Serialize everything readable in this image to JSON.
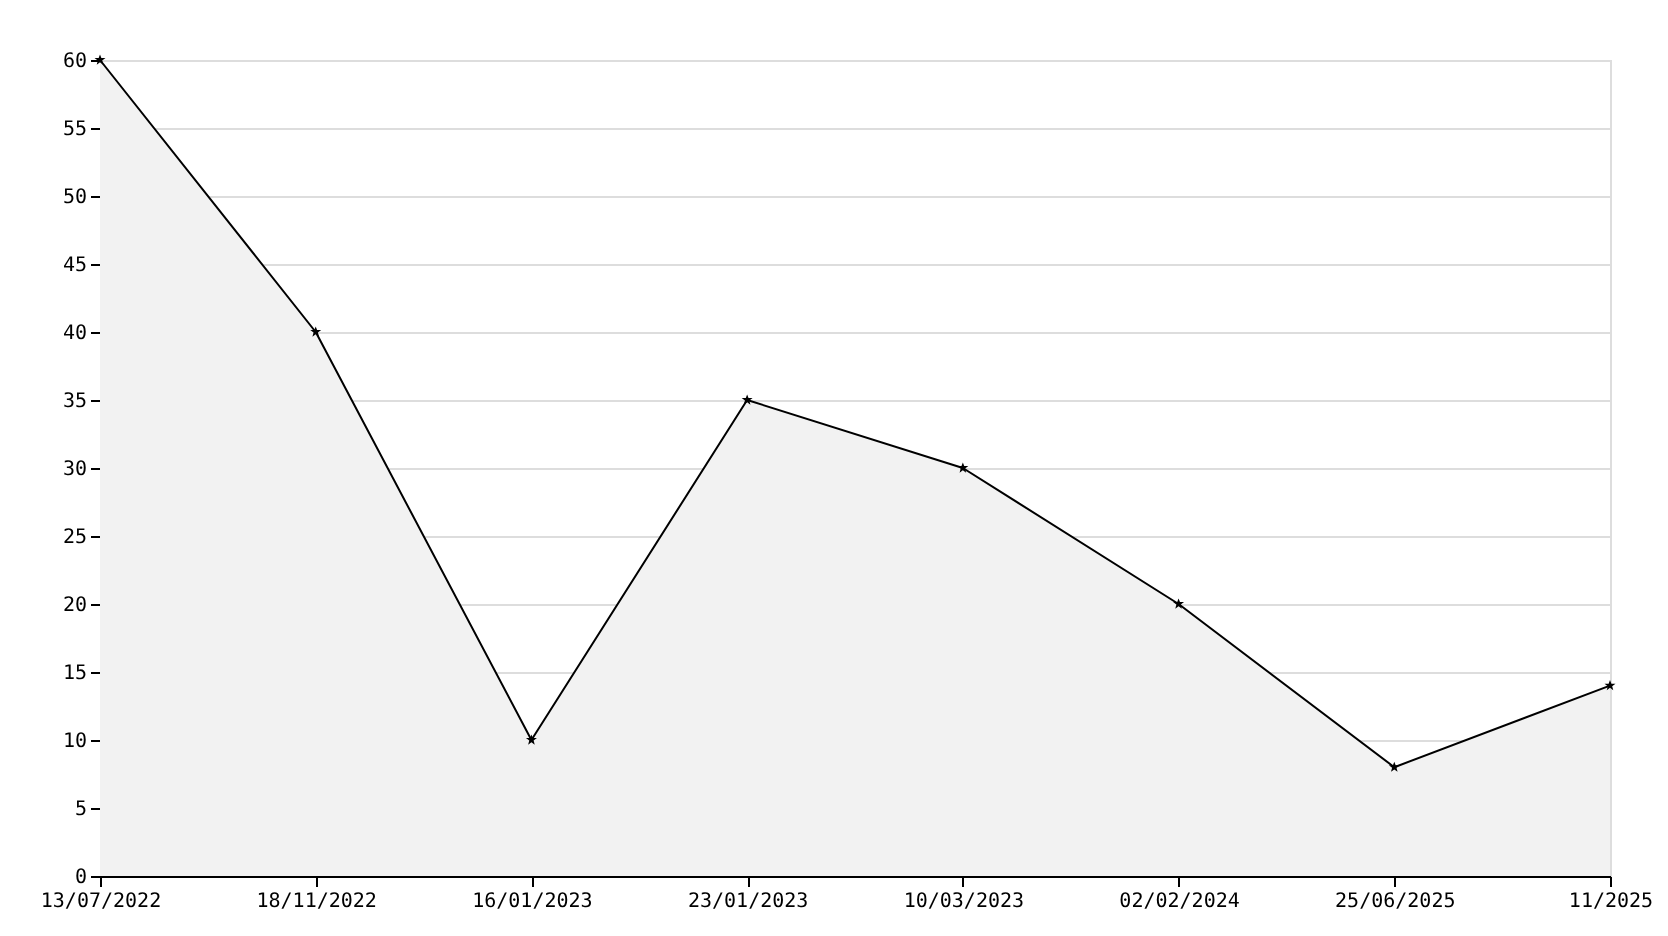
{
  "chart_data": {
    "type": "area",
    "categories": [
      "13/07/2022",
      "18/11/2022",
      "16/01/2023",
      "23/01/2023",
      "10/03/2023",
      "02/02/2024",
      "25/06/2025",
      "11/2025"
    ],
    "series": [
      {
        "color": "#000000",
        "values": [
          60,
          40,
          10,
          35,
          30,
          20,
          8,
          14
        ]
      }
    ],
    "ylim": [
      0,
      60
    ],
    "yticks": [
      0,
      5,
      10,
      15,
      20,
      25,
      30,
      35,
      40,
      45,
      50,
      55,
      60
    ],
    "grid": "y",
    "marker": "star",
    "line_style": "solid"
  }
}
